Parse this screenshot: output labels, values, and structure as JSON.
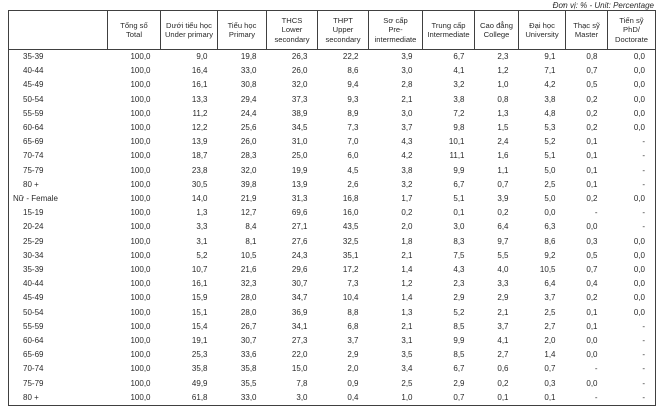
{
  "unit_note": "Đơn vị: % - Unit: Percentage",
  "table": {
    "columns": [
      {
        "key": "total",
        "vi": "Tổng số",
        "en": "Total"
      },
      {
        "key": "under-primary",
        "vi": "Dưới tiểu học",
        "en": "Under primary"
      },
      {
        "key": "primary",
        "vi": "Tiểu học",
        "en": "Primary"
      },
      {
        "key": "lower-secondary",
        "vi": "THCS",
        "en": "Lower secondary"
      },
      {
        "key": "upper-secondary",
        "vi": "THPT",
        "en": "Upper secondary"
      },
      {
        "key": "pre-intermediate",
        "vi": "Sơ cấp",
        "en": "Pre-intermediate"
      },
      {
        "key": "intermediate",
        "vi": "Trung cấp",
        "en": "Intermediate"
      },
      {
        "key": "college",
        "vi": "Cao đẳng",
        "en": "College"
      },
      {
        "key": "university",
        "vi": "Đại học",
        "en": "University"
      },
      {
        "key": "master",
        "vi": "Thạc sỹ",
        "en": "Master"
      },
      {
        "key": "doctorate",
        "vi": "Tiến sỹ",
        "en": "PhD/ Doctorate"
      }
    ],
    "rows": [
      {
        "label": "35-39",
        "indent": true,
        "values": [
          "100,0",
          "9,0",
          "19,8",
          "26,3",
          "22,2",
          "3,9",
          "6,7",
          "2,3",
          "9,1",
          "0,8",
          "0,0"
        ]
      },
      {
        "label": "40-44",
        "indent": true,
        "values": [
          "100,0",
          "16,4",
          "33,0",
          "26,0",
          "8,6",
          "3,0",
          "4,1",
          "1,2",
          "7,1",
          "0,7",
          "0,0"
        ]
      },
      {
        "label": "45-49",
        "indent": true,
        "values": [
          "100,0",
          "16,1",
          "30,8",
          "32,0",
          "9,4",
          "2,8",
          "3,2",
          "1,0",
          "4,2",
          "0,5",
          "0,0"
        ]
      },
      {
        "label": "50-54",
        "indent": true,
        "values": [
          "100,0",
          "13,3",
          "29,4",
          "37,3",
          "9,3",
          "2,1",
          "3,8",
          "0,8",
          "3,8",
          "0,2",
          "0,0"
        ]
      },
      {
        "label": "55-59",
        "indent": true,
        "values": [
          "100,0",
          "11,2",
          "24,4",
          "38,9",
          "8,9",
          "3,0",
          "7,2",
          "1,3",
          "4,8",
          "0,2",
          "0,0"
        ]
      },
      {
        "label": "60-64",
        "indent": true,
        "values": [
          "100,0",
          "12,2",
          "25,6",
          "34,5",
          "7,3",
          "3,7",
          "9,8",
          "1,5",
          "5,3",
          "0,2",
          "0,0"
        ]
      },
      {
        "label": "65-69",
        "indent": true,
        "values": [
          "100,0",
          "13,9",
          "26,0",
          "31,0",
          "7,0",
          "4,3",
          "10,1",
          "2,4",
          "5,2",
          "0,1",
          "-"
        ]
      },
      {
        "label": "70-74",
        "indent": true,
        "values": [
          "100,0",
          "18,7",
          "28,3",
          "25,0",
          "6,0",
          "4,2",
          "11,1",
          "1,6",
          "5,1",
          "0,1",
          "-"
        ]
      },
      {
        "label": "75-79",
        "indent": true,
        "values": [
          "100,0",
          "23,8",
          "32,0",
          "19,9",
          "4,5",
          "3,8",
          "9,9",
          "1,1",
          "5,0",
          "0,1",
          "-"
        ]
      },
      {
        "label": "80 +",
        "indent": true,
        "values": [
          "100,0",
          "30,5",
          "39,8",
          "13,9",
          "2,6",
          "3,2",
          "6,7",
          "0,7",
          "2,5",
          "0,1",
          "-"
        ]
      },
      {
        "label": "Nữ - Female",
        "indent": false,
        "values": [
          "100,0",
          "14,0",
          "21,9",
          "31,3",
          "16,8",
          "1,7",
          "5,1",
          "3,9",
          "5,0",
          "0,2",
          "0,0"
        ]
      },
      {
        "label": "15-19",
        "indent": true,
        "values": [
          "100,0",
          "1,3",
          "12,7",
          "69,6",
          "16,0",
          "0,2",
          "0,1",
          "0,2",
          "0,0",
          "-",
          "-"
        ]
      },
      {
        "label": "20-24",
        "indent": true,
        "values": [
          "100,0",
          "3,3",
          "8,4",
          "27,1",
          "43,5",
          "2,0",
          "3,0",
          "6,4",
          "6,3",
          "0,0",
          "-"
        ]
      },
      {
        "label": "25-29",
        "indent": true,
        "values": [
          "100,0",
          "3,1",
          "8,1",
          "27,6",
          "32,5",
          "1,8",
          "8,3",
          "9,7",
          "8,6",
          "0,3",
          "0,0"
        ]
      },
      {
        "label": "30-34",
        "indent": true,
        "values": [
          "100,0",
          "5,2",
          "10,5",
          "24,3",
          "35,1",
          "2,1",
          "7,5",
          "5,5",
          "9,2",
          "0,5",
          "0,0"
        ]
      },
      {
        "label": "35-39",
        "indent": true,
        "values": [
          "100,0",
          "10,7",
          "21,6",
          "29,6",
          "17,2",
          "1,4",
          "4,3",
          "4,0",
          "10,5",
          "0,7",
          "0,0"
        ]
      },
      {
        "label": "40-44",
        "indent": true,
        "values": [
          "100,0",
          "16,1",
          "32,3",
          "30,7",
          "7,3",
          "1,2",
          "2,3",
          "3,3",
          "6,4",
          "0,4",
          "0,0"
        ]
      },
      {
        "label": "45-49",
        "indent": true,
        "values": [
          "100,0",
          "15,9",
          "28,0",
          "34,7",
          "10,4",
          "1,4",
          "2,9",
          "2,9",
          "3,7",
          "0,2",
          "0,0"
        ]
      },
      {
        "label": "50-54",
        "indent": true,
        "values": [
          "100,0",
          "15,1",
          "28,0",
          "36,9",
          "8,8",
          "1,3",
          "5,2",
          "2,1",
          "2,5",
          "0,1",
          "0,0"
        ]
      },
      {
        "label": "55-59",
        "indent": true,
        "values": [
          "100,0",
          "15,4",
          "26,7",
          "34,1",
          "6,8",
          "2,1",
          "8,5",
          "3,7",
          "2,7",
          "0,1",
          "-"
        ]
      },
      {
        "label": "60-64",
        "indent": true,
        "values": [
          "100,0",
          "19,1",
          "30,7",
          "27,3",
          "3,7",
          "3,1",
          "9,9",
          "4,1",
          "2,0",
          "0,0",
          "-"
        ]
      },
      {
        "label": "65-69",
        "indent": true,
        "values": [
          "100,0",
          "25,3",
          "33,6",
          "22,0",
          "2,9",
          "3,5",
          "8,5",
          "2,7",
          "1,4",
          "0,0",
          "-"
        ]
      },
      {
        "label": "70-74",
        "indent": true,
        "values": [
          "100,0",
          "35,8",
          "35,8",
          "15,0",
          "2,0",
          "3,4",
          "6,7",
          "0,6",
          "0,7",
          "-",
          "-"
        ]
      },
      {
        "label": "75-79",
        "indent": true,
        "values": [
          "100,0",
          "49,9",
          "35,5",
          "7,8",
          "0,9",
          "2,5",
          "2,9",
          "0,2",
          "0,3",
          "0,0",
          "-"
        ]
      },
      {
        "label": "80 +",
        "indent": true,
        "values": [
          "100,0",
          "61,8",
          "33,0",
          "3,0",
          "0,4",
          "1,0",
          "0,7",
          "0,1",
          "0,1",
          "-",
          "-"
        ]
      }
    ]
  }
}
